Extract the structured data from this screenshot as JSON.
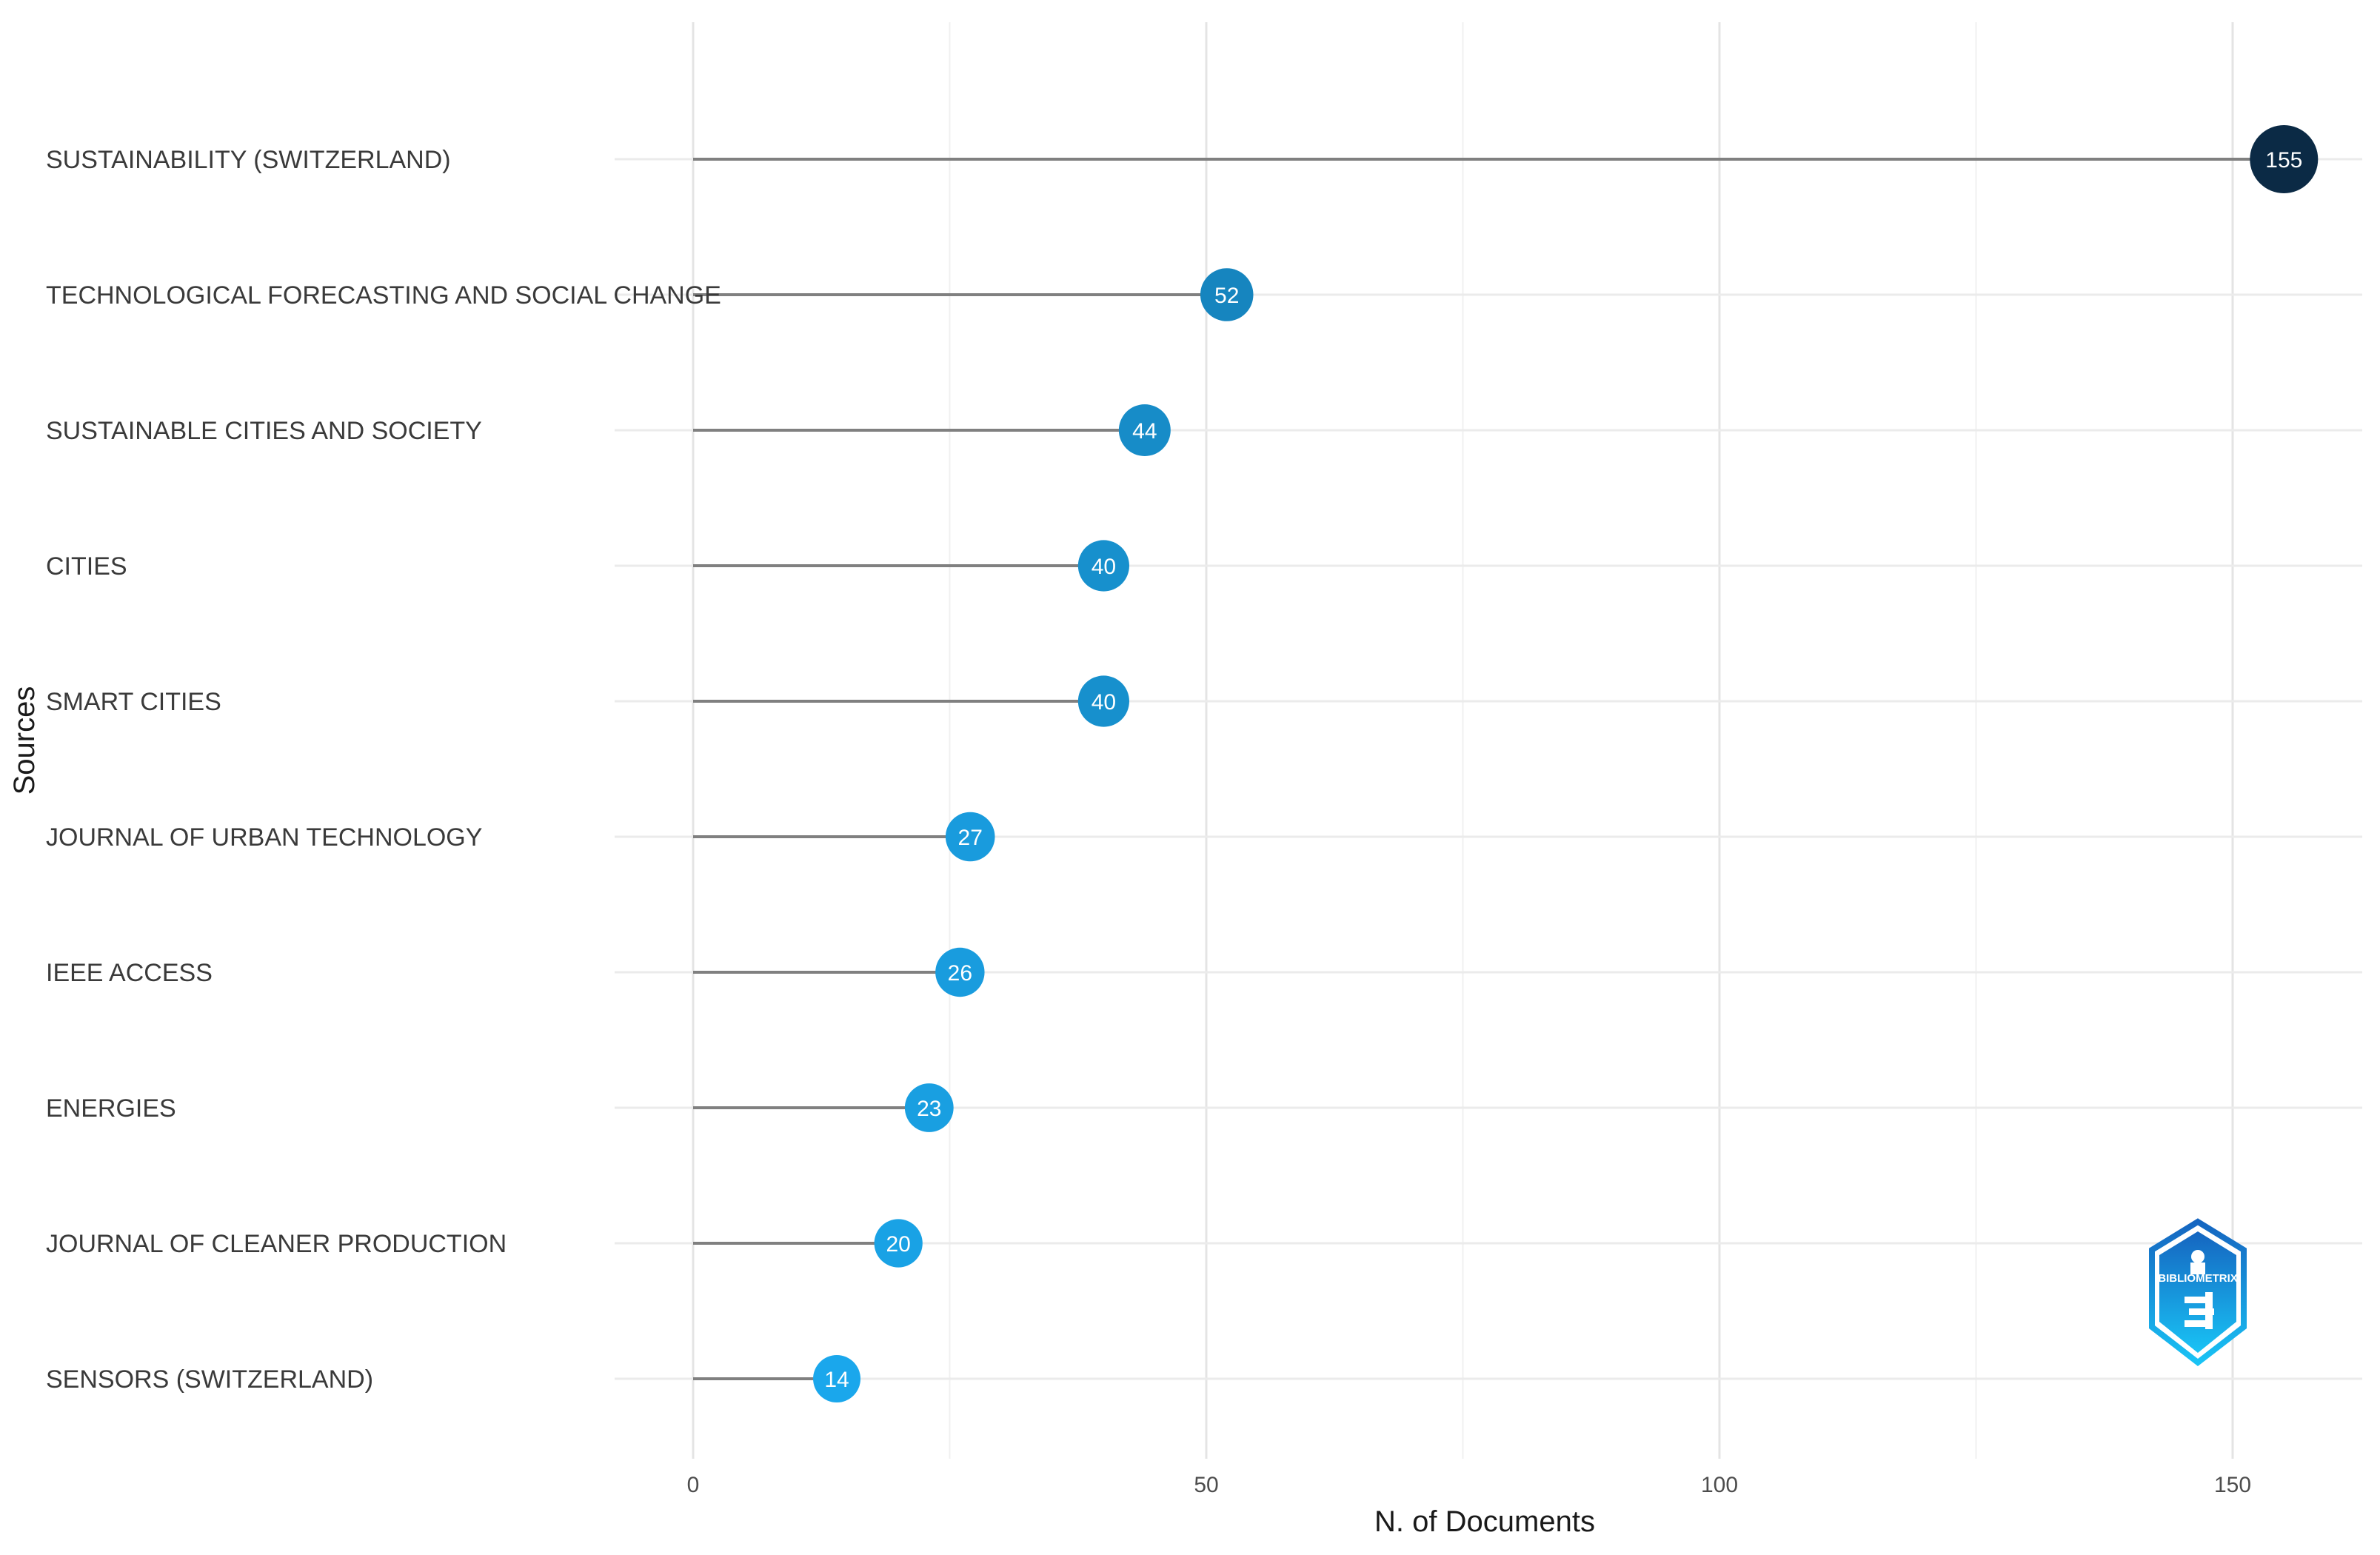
{
  "chart_data": {
    "type": "lollipop",
    "title": "",
    "xlabel": "N. of Documents",
    "ylabel": "Sources",
    "xlim": [
      0,
      160
    ],
    "x_ticks": [
      0,
      50,
      100,
      150
    ],
    "grid": true,
    "categories": [
      "SUSTAINABILITY (SWITZERLAND)",
      "TECHNOLOGICAL FORECASTING AND SOCIAL CHANGE",
      "SUSTAINABLE CITIES AND SOCIETY",
      "CITIES",
      "SMART CITIES",
      "JOURNAL OF URBAN TECHNOLOGY",
      "IEEE ACCESS",
      "ENERGIES",
      "JOURNAL OF CLEANER PRODUCTION",
      "SENSORS (SWITZERLAND)"
    ],
    "values": [
      155,
      52,
      44,
      40,
      40,
      27,
      26,
      23,
      20,
      14
    ],
    "color_scale": {
      "low": "#1aa7ec",
      "high": "#0b2a45"
    },
    "stem_color": "#808080",
    "logo": "bibliometrix-logo",
    "logo_text": "BIBLIOMETRIX"
  }
}
